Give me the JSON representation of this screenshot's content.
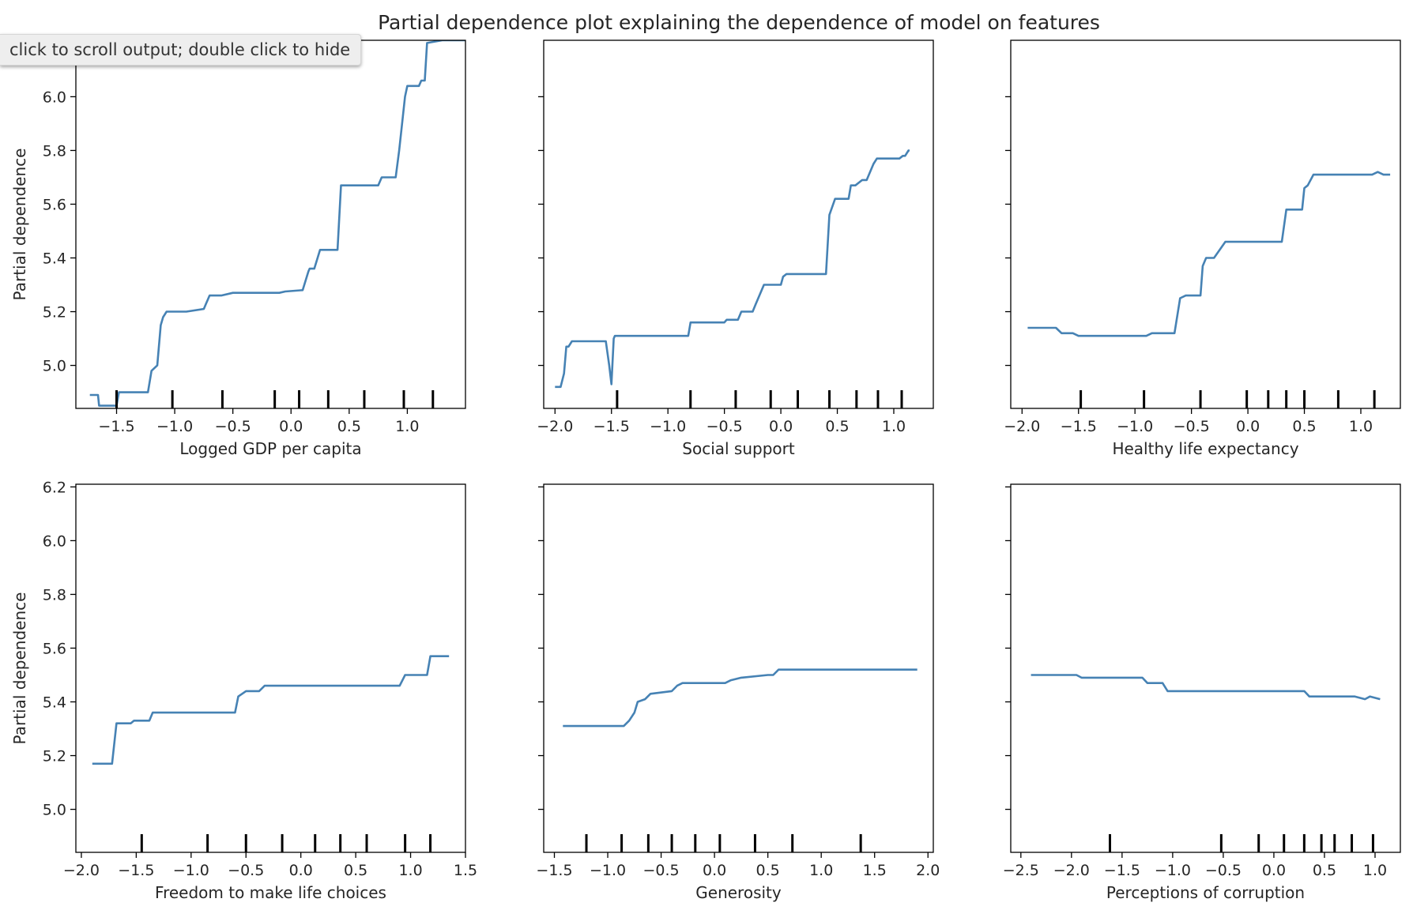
{
  "output_tooltip": "click to scroll output; double click to hide",
  "chart_data": {
    "type": "line",
    "title": "Partial dependence plot explaining the dependence of model on features",
    "line_color": "#4682b4",
    "grid": false,
    "shared_ylabel": "Partial dependence",
    "subplots": [
      {
        "xlabel": "Logged GDP per capita",
        "xlim": [
          -1.85,
          1.5
        ],
        "ylim": [
          4.84,
          6.21
        ],
        "xticks": [
          -1.5,
          -1.0,
          -0.5,
          0.0,
          0.5,
          1.0
        ],
        "xtick_labels": [
          "−1.5",
          "−1.0",
          "−0.5",
          "0.0",
          "0.5",
          "1.0"
        ],
        "yticks": [
          5.0,
          5.2,
          5.4,
          5.6,
          5.8,
          6.0
        ],
        "ytick_labels": [
          "5.0",
          "5.2",
          "5.4",
          "5.6",
          "5.8",
          "6.0"
        ],
        "ylabel": "Partial dependence",
        "deciles": [
          -1.5,
          -1.02,
          -0.59,
          -0.14,
          0.07,
          0.32,
          0.63,
          0.97,
          1.22
        ],
        "x": [
          -1.73,
          -1.66,
          -1.65,
          -1.58,
          -1.5,
          -1.48,
          -1.23,
          -1.2,
          -1.15,
          -1.12,
          -1.1,
          -1.07,
          -1.04,
          -1.0,
          -0.9,
          -0.75,
          -0.73,
          -0.7,
          -0.68,
          -0.6,
          -0.5,
          -0.3,
          -0.1,
          -0.05,
          0.1,
          0.15,
          0.16,
          0.2,
          0.25,
          0.27,
          0.4,
          0.43,
          0.6,
          0.75,
          0.78,
          0.9,
          0.93,
          0.98,
          1.0,
          1.1,
          1.12,
          1.15,
          1.17,
          1.3,
          1.5
        ],
        "y": [
          4.89,
          4.89,
          4.85,
          4.85,
          4.85,
          4.9,
          4.9,
          4.98,
          5.0,
          5.15,
          5.18,
          5.2,
          5.2,
          5.2,
          5.2,
          5.21,
          5.23,
          5.26,
          5.26,
          5.26,
          5.27,
          5.27,
          5.27,
          5.275,
          5.28,
          5.35,
          5.36,
          5.36,
          5.43,
          5.43,
          5.43,
          5.67,
          5.67,
          5.67,
          5.7,
          5.7,
          5.8,
          6.0,
          6.04,
          6.04,
          6.06,
          6.06,
          6.2,
          6.21,
          6.21
        ]
      },
      {
        "xlabel": "Social support",
        "xlim": [
          -2.1,
          1.35
        ],
        "ylim": [
          4.84,
          6.21
        ],
        "xticks": [
          -2.0,
          -1.5,
          -1.0,
          -0.5,
          0.0,
          0.5,
          1.0
        ],
        "xtick_labels": [
          "−2.0",
          "−1.5",
          "−1.0",
          "−0.5",
          "0.0",
          "0.5",
          "1.0"
        ],
        "yticks": [
          5.0,
          5.2,
          5.4,
          5.6,
          5.8,
          6.0
        ],
        "ytick_labels": [],
        "ylabel": "",
        "deciles": [
          -1.45,
          -0.8,
          -0.4,
          -0.09,
          0.15,
          0.43,
          0.67,
          0.86,
          1.07
        ],
        "x": [
          -2.0,
          -1.95,
          -1.92,
          -1.9,
          -1.88,
          -1.85,
          -1.8,
          -1.55,
          -1.52,
          -1.5,
          -1.48,
          -1.47,
          -1.3,
          -0.82,
          -0.8,
          -0.5,
          -0.48,
          -0.38,
          -0.35,
          -0.25,
          -0.22,
          -0.15,
          -0.12,
          0.0,
          0.02,
          0.05,
          0.1,
          0.25,
          0.4,
          0.43,
          0.48,
          0.6,
          0.62,
          0.66,
          0.72,
          0.76,
          0.82,
          0.85,
          0.88,
          1.05,
          1.08,
          1.1,
          1.13,
          1.14
        ],
        "y": [
          4.92,
          4.92,
          4.97,
          5.07,
          5.07,
          5.09,
          5.09,
          5.09,
          5.0,
          4.93,
          5.1,
          5.11,
          5.11,
          5.11,
          5.16,
          5.16,
          5.17,
          5.17,
          5.2,
          5.2,
          5.23,
          5.3,
          5.3,
          5.3,
          5.33,
          5.34,
          5.34,
          5.34,
          5.34,
          5.56,
          5.62,
          5.62,
          5.67,
          5.67,
          5.69,
          5.69,
          5.75,
          5.77,
          5.77,
          5.77,
          5.78,
          5.78,
          5.8,
          5.8
        ]
      },
      {
        "xlabel": "Healthy life expectancy",
        "xlim": [
          -2.1,
          1.35
        ],
        "ylim": [
          4.84,
          6.21
        ],
        "xticks": [
          -2.0,
          -1.5,
          -1.0,
          -0.5,
          0.0,
          0.5,
          1.0
        ],
        "xtick_labels": [
          "−2.0",
          "−1.5",
          "−1.0",
          "−0.5",
          "0.0",
          "0.5",
          "1.0"
        ],
        "yticks": [
          5.0,
          5.2,
          5.4,
          5.6,
          5.8,
          6.0
        ],
        "ytick_labels": [],
        "ylabel": "",
        "deciles": [
          -1.48,
          -0.92,
          -0.42,
          -0.01,
          0.18,
          0.34,
          0.5,
          0.8,
          1.12
        ],
        "x": [
          -1.95,
          -1.7,
          -1.65,
          -1.55,
          -1.5,
          -0.9,
          -0.85,
          -0.65,
          -0.6,
          -0.55,
          -0.42,
          -0.4,
          -0.37,
          -0.3,
          -0.25,
          -0.2,
          -0.15,
          -0.1,
          0.3,
          0.34,
          0.48,
          0.5,
          0.53,
          0.58,
          1.1,
          1.15,
          1.2,
          1.26
        ],
        "y": [
          5.14,
          5.14,
          5.12,
          5.12,
          5.11,
          5.11,
          5.12,
          5.12,
          5.25,
          5.26,
          5.26,
          5.37,
          5.4,
          5.4,
          5.43,
          5.46,
          5.46,
          5.46,
          5.46,
          5.58,
          5.58,
          5.66,
          5.67,
          5.71,
          5.71,
          5.72,
          5.71,
          5.71
        ]
      },
      {
        "xlabel": "Freedom to make life choices",
        "xlim": [
          -2.05,
          1.5
        ],
        "ylim": [
          4.84,
          6.21
        ],
        "xticks": [
          -2.0,
          -1.5,
          -1.0,
          -0.5,
          0.0,
          0.5,
          1.0,
          1.5
        ],
        "xtick_labels": [
          "−2.0",
          "−1.5",
          "−1.0",
          "−0.5",
          "0.0",
          "0.5",
          "1.0",
          "1.5"
        ],
        "yticks": [
          5.0,
          5.2,
          5.4,
          5.6,
          5.8,
          6.0,
          6.2
        ],
        "ytick_labels": [
          "5.0",
          "5.2",
          "5.4",
          "5.6",
          "5.8",
          "6.0",
          "6.2"
        ],
        "ylabel": "Partial dependence",
        "deciles": [
          -1.45,
          -0.85,
          -0.5,
          -0.17,
          0.13,
          0.36,
          0.6,
          0.95,
          1.18
        ],
        "x": [
          -1.9,
          -1.72,
          -1.68,
          -1.55,
          -1.52,
          -1.38,
          -1.35,
          -1.25,
          -1.2,
          -0.6,
          -0.57,
          -0.5,
          -0.38,
          -0.33,
          -0.2,
          0.9,
          0.95,
          1.15,
          1.18,
          1.35
        ],
        "y": [
          5.17,
          5.17,
          5.32,
          5.32,
          5.33,
          5.33,
          5.36,
          5.36,
          5.36,
          5.36,
          5.42,
          5.44,
          5.44,
          5.46,
          5.46,
          5.46,
          5.5,
          5.5,
          5.57,
          5.57
        ]
      },
      {
        "xlabel": "Generosity",
        "xlim": [
          -1.6,
          2.05
        ],
        "ylim": [
          4.84,
          6.21
        ],
        "xticks": [
          -1.5,
          -1.0,
          -0.5,
          0.0,
          0.5,
          1.0,
          1.5,
          2.0
        ],
        "xtick_labels": [
          "−1.5",
          "−1.0",
          "−0.5",
          "0.0",
          "0.5",
          "1.0",
          "1.5",
          "2.0"
        ],
        "yticks": [
          5.0,
          5.2,
          5.4,
          5.6,
          5.8,
          6.0,
          6.2
        ],
        "ytick_labels": [],
        "ylabel": "",
        "deciles": [
          -1.2,
          -0.87,
          -0.62,
          -0.4,
          -0.18,
          0.05,
          0.38,
          0.73,
          1.37
        ],
        "x": [
          -1.42,
          -0.85,
          -0.8,
          -0.75,
          -0.72,
          -0.65,
          -0.6,
          -0.4,
          -0.35,
          -0.3,
          -0.25,
          0.1,
          0.15,
          0.25,
          0.5,
          0.55,
          0.6,
          1.9
        ],
        "y": [
          5.31,
          5.31,
          5.33,
          5.36,
          5.4,
          5.41,
          5.43,
          5.44,
          5.46,
          5.47,
          5.47,
          5.47,
          5.48,
          5.49,
          5.5,
          5.5,
          5.52,
          5.52
        ]
      },
      {
        "xlabel": "Perceptions of corruption",
        "xlim": [
          -2.6,
          1.25
        ],
        "ylim": [
          4.84,
          6.21
        ],
        "xticks": [
          -2.5,
          -2.0,
          -1.5,
          -1.0,
          -0.5,
          0.0,
          0.5,
          1.0
        ],
        "xtick_labels": [
          "−2.5",
          "−2.0",
          "−1.5",
          "−1.0",
          "−0.5",
          "0.0",
          "0.5",
          "1.0"
        ],
        "yticks": [
          5.0,
          5.2,
          5.4,
          5.6,
          5.8,
          6.0,
          6.2
        ],
        "ytick_labels": [],
        "ylabel": "",
        "deciles": [
          -1.62,
          -0.52,
          -0.15,
          0.1,
          0.3,
          0.47,
          0.6,
          0.77,
          0.98
        ],
        "x": [
          -2.4,
          -2.3,
          -2.2,
          -1.95,
          -1.9,
          -1.3,
          -1.25,
          -1.1,
          -1.05,
          0.05,
          0.1,
          0.3,
          0.35,
          0.8,
          0.9,
          0.95,
          1.05
        ],
        "y": [
          5.5,
          5.5,
          5.5,
          5.5,
          5.49,
          5.49,
          5.47,
          5.47,
          5.44,
          5.44,
          5.44,
          5.44,
          5.42,
          5.42,
          5.41,
          5.42,
          5.41
        ]
      }
    ]
  }
}
